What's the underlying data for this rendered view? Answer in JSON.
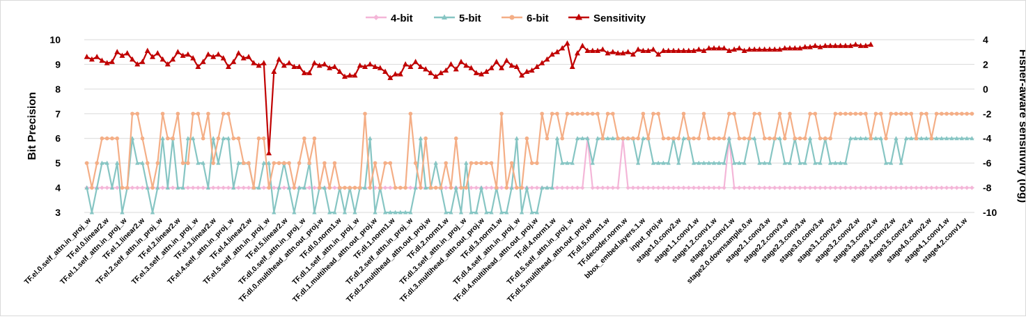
{
  "chart_data": {
    "type": "line",
    "title": "",
    "xlabel": "",
    "ylabel": "Bit Precision",
    "ylabel_right": "Fisher-aware sensitivity (log)",
    "ylim": [
      3,
      10
    ],
    "yticks": [
      3,
      4,
      5,
      6,
      7,
      8,
      9,
      10
    ],
    "ylim_right": [
      -10,
      4
    ],
    "yticks_right": [
      -10,
      -8,
      -6,
      -4,
      -2,
      0,
      2,
      4
    ],
    "grid": "horizontal",
    "legend_position": "top-center",
    "colors": {
      "4-bit": "#f4b6d8",
      "5-bit": "#86c5c3",
      "6-bit": "#f4ae86",
      "Sensitivity": "#c00000"
    },
    "tick_labels": [
      "TF.el.0.self_attn.in_proj_w",
      "TF.el.0.linear2.w",
      "TF.el.1.self_attn.in_proj_w",
      "TF.el.1.linear2.w",
      "TF.el.2.self_attn.in_proj_w",
      "TF.el.2.linear2.w",
      "TF.el.3.self_attn.in_proj_w",
      "TF.el.3.linear2.w",
      "TF.el.4.self_attn.in_proj_w",
      "TF.el.4.linear2.w",
      "TF.el.5.self_attn.in_proj_w",
      "TF.el.5.linear2.w",
      "TF.dl.0.self_attn.in_proj_w",
      "TF.dl.0.multihead_attn.out_proj.w",
      "TF.dl.0.norm1.w",
      "TF.dl.1.self_attn.in_proj_w",
      "TF.dl.1.multihead_attn.out_proj.w",
      "TF.dl.1.norm1.w",
      "TF.dl.2.self_attn.in_proj_w",
      "TF.dl.2.multihead_attn.out_proj.w",
      "TF.dl.2.norm1.w",
      "TF.dl.3.self_attn.in_proj_w",
      "TF.dl.3.multihead_attn.out_proj.w",
      "TF.dl.3.norm1.w",
      "TF.dl.4.self_attn.in_proj_w",
      "TF.dl.4.multihead_attn.out_proj.w",
      "TF.dl.4.norm1.w",
      "TF.dl.5.self_attn.in_proj_w",
      "TF.dl.5.multihead_attn.out_proj.w",
      "TF.dl.5.norm1.w",
      "TF.decoder.norm.w",
      "bbox_embed.layers.1.w",
      "input_proj.w",
      "stage1.0.conv2.w",
      "stage1.1.conv1.w",
      "stage1.2.conv1.w",
      "stage2.0.conv1.w",
      "stage2.0.downsample.0.w",
      "stage2.1.conv3.w",
      "stage2.2.conv3.w",
      "stage2.3.conv3.w",
      "stage3.0.conv3.w",
      "stage3.1.conv2.w",
      "stage3.2.conv2.w",
      "stage3.3.conv2.w",
      "stage3.4.conv2.w",
      "stage3.5.conv2.w",
      "stage4.0.conv2.w",
      "stage4.1.conv1.w",
      "stage4.2.conv1.w"
    ],
    "series": [
      {
        "name": "4-bit",
        "values": [
          4,
          4,
          4,
          4,
          4,
          4,
          4,
          4,
          4,
          4,
          4,
          4,
          4,
          4,
          4,
          4,
          4,
          4,
          4,
          4,
          4,
          4,
          4,
          4,
          4,
          4,
          4,
          4,
          4,
          4,
          4,
          4,
          4,
          4,
          4,
          4,
          4,
          4,
          4,
          4,
          4,
          4,
          4,
          4,
          4,
          4,
          4,
          4,
          4,
          4,
          4,
          4,
          4,
          4,
          4,
          4,
          4,
          4,
          4,
          4,
          4,
          4,
          4,
          4,
          4,
          4,
          4,
          4,
          4,
          4,
          4,
          4,
          4,
          4,
          4,
          4,
          4,
          4,
          4,
          4,
          4,
          4,
          4,
          4,
          4,
          4,
          4,
          4,
          4,
          4,
          4,
          4,
          4,
          4,
          4,
          4,
          4,
          4,
          4,
          6,
          4,
          4,
          4,
          4,
          4,
          4,
          6,
          4,
          4,
          4,
          4,
          4,
          4,
          4,
          4,
          4,
          4,
          4,
          4,
          4,
          4,
          4,
          4,
          4,
          4,
          4,
          4,
          6,
          4,
          4,
          4,
          4,
          4,
          4,
          4,
          4,
          4,
          4,
          4,
          4,
          4,
          4,
          4,
          4,
          4,
          4,
          4,
          4,
          4,
          4,
          4,
          4,
          4,
          4,
          4,
          4,
          4,
          4,
          4,
          4,
          4,
          4,
          4,
          4,
          4,
          4,
          4,
          4,
          4,
          4,
          4,
          4,
          4,
          4,
          4,
          4
        ]
      },
      {
        "name": "5-bit",
        "values": [
          4,
          3,
          4,
          5,
          5,
          4,
          5,
          3,
          4,
          6,
          5,
          5,
          4,
          3,
          4,
          6,
          4,
          6,
          4,
          4,
          6,
          6,
          5,
          5,
          4,
          6,
          5,
          6,
          6,
          4,
          5,
          5,
          5,
          4,
          4,
          5,
          5,
          3,
          4,
          5,
          4,
          3,
          4,
          4,
          5,
          3,
          4,
          4,
          3,
          3,
          4,
          3,
          4,
          3,
          4,
          4,
          6,
          3,
          4,
          3,
          3,
          3,
          3,
          3,
          3,
          4,
          6,
          4,
          4,
          5,
          4,
          3,
          3,
          4,
          3,
          5,
          3,
          3,
          4,
          3,
          3,
          4,
          3,
          3,
          4,
          6,
          3,
          4,
          3,
          3,
          4,
          4,
          4,
          6,
          5,
          5,
          5,
          6,
          6,
          6,
          5,
          6,
          6,
          6,
          6,
          6,
          6,
          6,
          6,
          5,
          6,
          6,
          5,
          5,
          5,
          5,
          6,
          5,
          6,
          6,
          5,
          5,
          5,
          5,
          5,
          5,
          5,
          6,
          5,
          5,
          5,
          6,
          6,
          5,
          5,
          5,
          6,
          6,
          5,
          5,
          6,
          5,
          5,
          6,
          5,
          5,
          6,
          5,
          5,
          5,
          5,
          6,
          6,
          6,
          6,
          6,
          6,
          6,
          5,
          5,
          6,
          5,
          6,
          6,
          6,
          6,
          6,
          6,
          6,
          6,
          6,
          6,
          6,
          6,
          6,
          6
        ]
      },
      {
        "name": "6-bit",
        "values": [
          5,
          4,
          5,
          6,
          6,
          6,
          6,
          4,
          4,
          7,
          7,
          6,
          5,
          4,
          5,
          7,
          6,
          6,
          7,
          5,
          5,
          7,
          7,
          6,
          7,
          5,
          6,
          7,
          7,
          6,
          6,
          5,
          5,
          4,
          6,
          6,
          4,
          5,
          5,
          5,
          5,
          4,
          5,
          6,
          5,
          6,
          4,
          5,
          4,
          5,
          4,
          4,
          4,
          4,
          4,
          7,
          4,
          5,
          4,
          5,
          5,
          4,
          4,
          4,
          7,
          5,
          4,
          6,
          4,
          4,
          4,
          5,
          4,
          6,
          4,
          4,
          5,
          5,
          5,
          5,
          5,
          4,
          7,
          4,
          5,
          4,
          4,
          6,
          5,
          5,
          7,
          6,
          7,
          7,
          6,
          7,
          7,
          7,
          7,
          7,
          7,
          7,
          6,
          7,
          7,
          6,
          6,
          6,
          6,
          6,
          7,
          6,
          7,
          7,
          6,
          6,
          6,
          6,
          7,
          6,
          6,
          6,
          7,
          6,
          6,
          6,
          6,
          7,
          7,
          6,
          6,
          6,
          7,
          7,
          6,
          6,
          6,
          7,
          6,
          7,
          6,
          6,
          6,
          7,
          7,
          6,
          6,
          6,
          7,
          7,
          7,
          7,
          7,
          7,
          7,
          6,
          7,
          7,
          6,
          7,
          7,
          7,
          7,
          7,
          6,
          7,
          7,
          6,
          7,
          7,
          7,
          7,
          7,
          7,
          7,
          7
        ]
      },
      {
        "name": "Sensitivity",
        "axis": "right",
        "values": [
          2.6,
          2.4,
          2.6,
          2.3,
          2.1,
          2.2,
          3.0,
          2.7,
          2.9,
          2.4,
          2.0,
          2.2,
          3.1,
          2.6,
          2.9,
          2.4,
          2.0,
          2.4,
          3.0,
          2.7,
          2.8,
          2.5,
          1.8,
          2.2,
          2.8,
          2.6,
          2.8,
          2.5,
          1.8,
          2.2,
          2.9,
          2.5,
          2.6,
          2.1,
          1.9,
          2.1,
          -5.2,
          1.4,
          2.4,
          1.9,
          2.1,
          1.8,
          1.8,
          1.3,
          1.3,
          2.1,
          1.9,
          2.0,
          1.7,
          1.8,
          1.4,
          1.0,
          1.1,
          1.1,
          1.9,
          1.8,
          2.0,
          1.8,
          1.7,
          1.4,
          0.9,
          1.2,
          1.2,
          2.0,
          1.8,
          2.2,
          1.8,
          1.6,
          1.3,
          1.0,
          1.3,
          1.5,
          2.0,
          1.6,
          2.2,
          1.9,
          1.7,
          1.3,
          1.2,
          1.4,
          1.7,
          2.2,
          1.7,
          2.3,
          1.9,
          1.8,
          1.1,
          1.4,
          1.5,
          1.8,
          2.1,
          2.4,
          2.8,
          3.0,
          3.3,
          3.7,
          1.8,
          2.9,
          3.5,
          3.1,
          3.1,
          3.1,
          3.2,
          2.9,
          3.0,
          2.9,
          2.9,
          3.0,
          2.8,
          3.2,
          3.1,
          3.1,
          3.2,
          2.8,
          3.1,
          3.1,
          3.1,
          3.1,
          3.1,
          3.1,
          3.1,
          3.2,
          3.1,
          3.3,
          3.3,
          3.3,
          3.3,
          3.1,
          3.2,
          3.3,
          3.1,
          3.2,
          3.2,
          3.2,
          3.2,
          3.2,
          3.2,
          3.2,
          3.3,
          3.3,
          3.3,
          3.3,
          3.4,
          3.4,
          3.5,
          3.4,
          3.5,
          3.5,
          3.5,
          3.5,
          3.5,
          3.5,
          3.6,
          3.5,
          3.5,
          3.6
        ]
      }
    ]
  }
}
